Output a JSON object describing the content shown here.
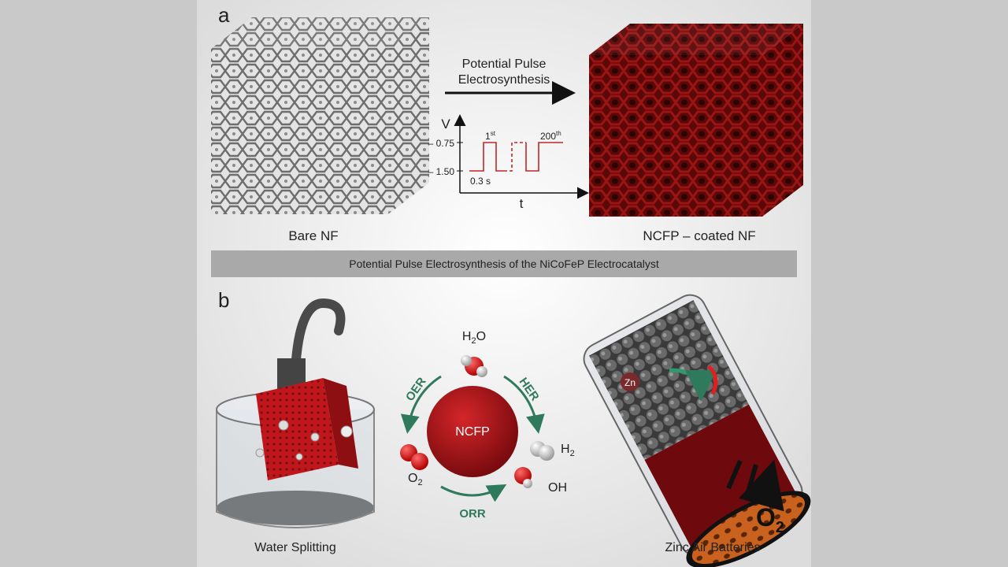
{
  "panel_a": {
    "label": "a",
    "arrow_text": [
      "Potential Pulse",
      "Electrosynthesis"
    ],
    "pulse": {
      "y_axis": "V",
      "x_axis": "t",
      "upper": "– 0.75",
      "lower": "– 1.50",
      "first": {
        "base": "1",
        "sup": "st"
      },
      "last": {
        "base": "200",
        "sup": "th"
      },
      "duration": "0.3 s"
    },
    "left_caption": "Bare NF",
    "right_caption": "NCFP – coated NF"
  },
  "banner": "Potential Pulse Electrosynthesis of the NiCoFeP Electrocatalyst",
  "panel_b": {
    "label": "b",
    "center": "NCFP",
    "species": {
      "h2o": {
        "base": "H",
        "sub": "2",
        "rest": "O"
      },
      "h2": {
        "base": "H",
        "sub": "2"
      },
      "o2": {
        "base": "O",
        "sub": "2"
      },
      "oh": "OH"
    },
    "reactions": {
      "oer": "OER",
      "her": "HER",
      "orr": "ORR"
    },
    "zn": "Zn",
    "o2_big": {
      "base": "O",
      "sub": "2"
    },
    "left_caption": "Water Splitting",
    "right_caption": "Zinc Air Batteries"
  }
}
